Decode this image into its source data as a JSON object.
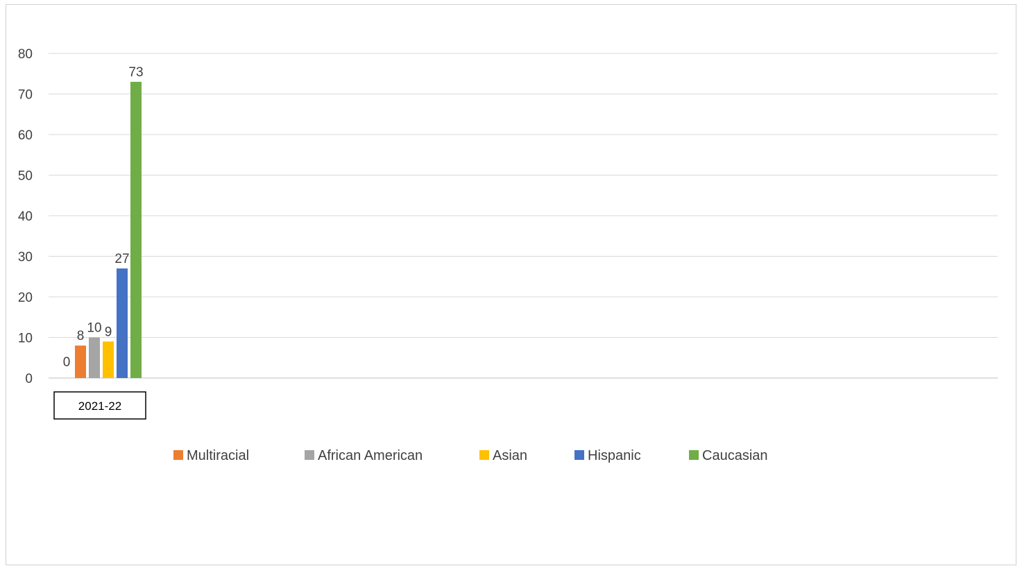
{
  "chart_data": {
    "type": "bar",
    "categories": [
      "2021-22"
    ],
    "series": [
      {
        "name": "",
        "values": [
          0
        ],
        "color": "#4472C4"
      },
      {
        "name": "Multiracial",
        "values": [
          8
        ],
        "color": "#ED7D31"
      },
      {
        "name": "African American",
        "values": [
          10
        ],
        "color": "#A5A5A5"
      },
      {
        "name": "Asian",
        "values": [
          9
        ],
        "color": "#FFC000"
      },
      {
        "name": "Hispanic",
        "values": [
          27
        ],
        "color": "#4472C4"
      },
      {
        "name": "Caucasian",
        "values": [
          73
        ],
        "color": "#70AD47"
      }
    ],
    "yticks": [
      0,
      10,
      20,
      30,
      40,
      50,
      60,
      70,
      80
    ],
    "ylim": [
      0,
      80
    ],
    "grid": true,
    "legend_position": "bottom",
    "title": "",
    "xlabel": "",
    "ylabel": ""
  }
}
